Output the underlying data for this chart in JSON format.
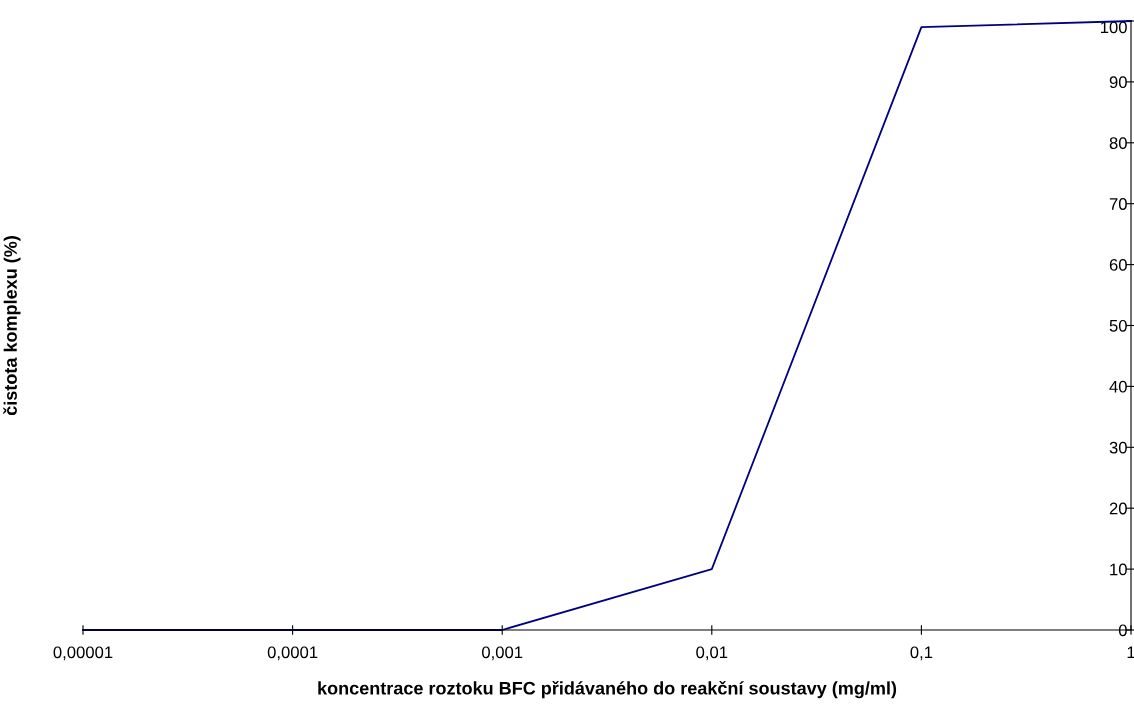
{
  "chart_data": {
    "type": "line",
    "xlabel": "koncentrace roztoku BFC přidávaného do reakční soustavy (mg/ml)",
    "ylabel": "čistota komplexu (%)",
    "x": [
      1e-05,
      0.0001,
      0.001,
      0.01,
      0.1,
      1
    ],
    "series": [
      {
        "color": "#000080",
        "values": [
          0,
          0,
          0,
          10,
          99,
          100
        ]
      }
    ],
    "log": "x",
    "xlim": [
      1e-05,
      1
    ],
    "xticks": [
      {
        "value": 1e-05,
        "label": "0,00001"
      },
      {
        "value": 0.0001,
        "label": "0,0001"
      },
      {
        "value": 0.001,
        "label": "0,001"
      },
      {
        "value": 0.01,
        "label": "0,01"
      },
      {
        "value": 0.1,
        "label": "0,1"
      },
      1
    ],
    "ylim": [
      0,
      100
    ],
    "yticks": [
      0,
      10,
      20,
      30,
      40,
      50,
      60,
      70,
      80,
      90,
      100
    ],
    "grid": false,
    "legend": false,
    "marker": "none",
    "line_style": "solid"
  }
}
